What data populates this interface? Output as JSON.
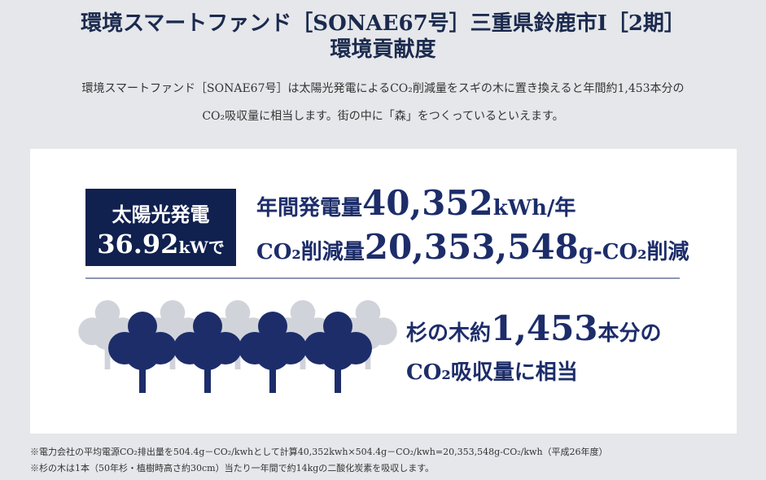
{
  "header": {
    "title": "環境スマートファンド［SONAE67号］三重県鈴鹿市Ⅰ［2期］",
    "subtitle": "環境貢献度"
  },
  "intro": [
    "環境スマートファンド［SONAE67号］は太陽光発電によるCO₂削減量をスギの木に置き換えると年間約1,453本分の",
    "CO₂吸収量に相当します。街の中に「森」をつくっているといえます。"
  ],
  "badge": {
    "label": "太陽光発電",
    "value": "36.92",
    "unit": "kWで"
  },
  "stats": [
    {
      "label": "年間発電量",
      "value": "40,352",
      "unit": "kWh/年"
    },
    {
      "label": "CO₂削減量",
      "value": "20,353,548",
      "unit": "g-CO₂削減"
    }
  ],
  "trees": {
    "prefix": "杉の木約",
    "value": "1,453",
    "suffix": "本分の",
    "line2": "CO₂吸収量に相当"
  },
  "notes": [
    "※電力会社の平均電源CO₂排出量を504.4g－CO₂/kwhとして計算40,352kwh×504.4g－CO₂/kwh=20,353,548g-CO₂/kwh（平成26年度）",
    "※杉の木は1本（50年杉・植樹時高さ約30cm）当たり一年間で約14kgの二酸化炭素を吸収します。"
  ]
}
